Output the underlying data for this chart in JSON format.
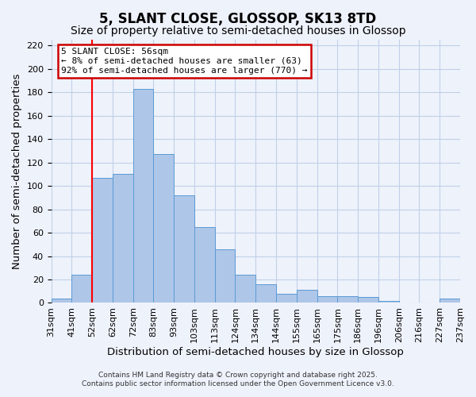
{
  "title": "5, SLANT CLOSE, GLOSSOP, SK13 8TD",
  "subtitle": "Size of property relative to semi-detached houses in Glossop",
  "xlabel": "Distribution of semi-detached houses by size in Glossop",
  "ylabel": "Number of semi-detached properties",
  "bar_labels": [
    "31sqm",
    "41sqm",
    "52sqm",
    "62sqm",
    "72sqm",
    "83sqm",
    "93sqm",
    "103sqm",
    "113sqm",
    "124sqm",
    "134sqm",
    "144sqm",
    "155sqm",
    "165sqm",
    "175sqm",
    "186sqm",
    "196sqm",
    "206sqm",
    "216sqm",
    "227sqm",
    "237sqm"
  ],
  "bar_values": [
    4,
    24,
    107,
    110,
    183,
    127,
    92,
    65,
    46,
    24,
    16,
    8,
    11,
    6,
    6,
    5,
    2,
    0,
    0,
    4
  ],
  "bar_color": "#aec6e8",
  "bar_edge_color": "#5b9bd5",
  "ylim": [
    0,
    225
  ],
  "yticks": [
    0,
    20,
    40,
    60,
    80,
    100,
    120,
    140,
    160,
    180,
    200,
    220
  ],
  "vline_x_index": 2,
  "vline_color": "red",
  "annotation_title": "5 SLANT CLOSE: 56sqm",
  "annotation_line1": "← 8% of semi-detached houses are smaller (63)",
  "annotation_line2": "92% of semi-detached houses are larger (770) →",
  "annotation_box_color": "#ffffff",
  "annotation_box_edge": "#cc0000",
  "footer1": "Contains HM Land Registry data © Crown copyright and database right 2025.",
  "footer2": "Contains public sector information licensed under the Open Government Licence v3.0.",
  "background_color": "#eef2fb",
  "grid_color": "#c0d0e8",
  "title_fontsize": 12,
  "subtitle_fontsize": 10,
  "axis_label_fontsize": 9.5,
  "tick_fontsize": 8,
  "footer_fontsize": 6.5
}
